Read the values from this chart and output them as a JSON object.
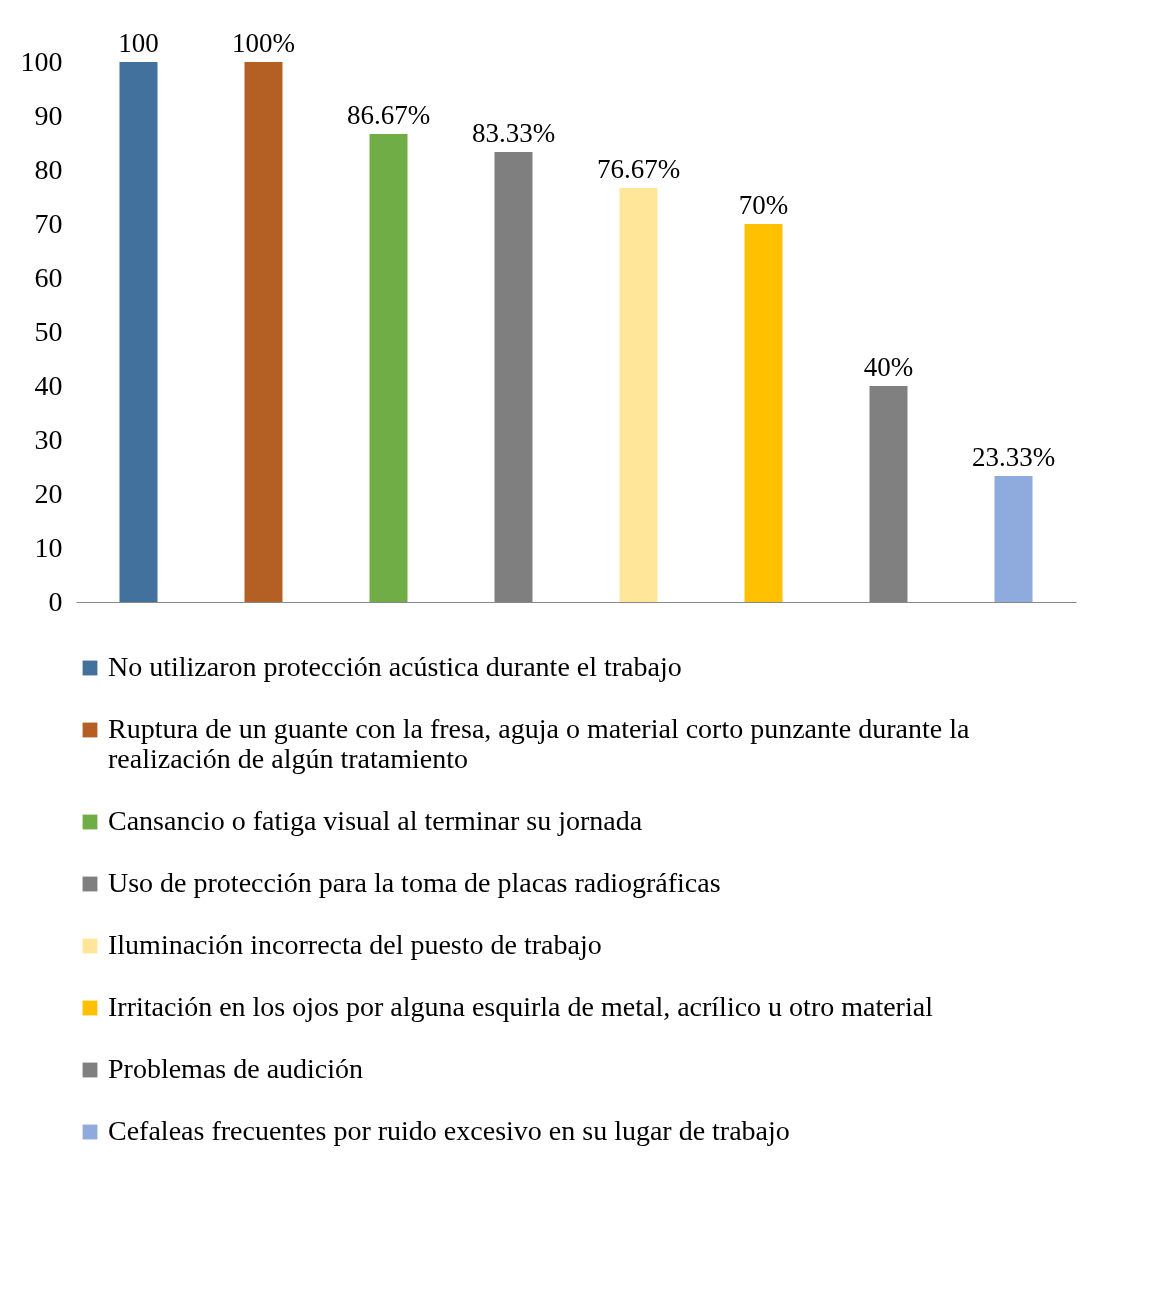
{
  "chart_data": {
    "type": "bar",
    "categories": [
      null,
      null,
      null,
      null,
      null,
      null,
      null,
      null
    ],
    "series": [
      {
        "name": "No utilizaron protección acústica durante el trabajo",
        "color": "#41719c",
        "values": [
          100,
          null,
          null,
          null,
          null,
          null,
          null,
          null
        ]
      },
      {
        "name": "Ruptura de un guante con la fresa, aguja o material corto punzante durante la realización de algún tratamiento",
        "color": "#b45f24",
        "values": [
          null,
          100,
          null,
          null,
          null,
          null,
          null,
          null
        ]
      },
      {
        "name": "Cansancio o fatiga visual al terminar su jornada",
        "color": "#70ad47",
        "values": [
          null,
          null,
          86.67,
          null,
          null,
          null,
          null,
          null
        ]
      },
      {
        "name": "Uso de protección para la toma de placas radiográficas",
        "color": "#7f7f7f",
        "values": [
          null,
          null,
          null,
          83.33,
          null,
          null,
          null,
          null
        ]
      },
      {
        "name": "Iluminación incorrecta del puesto de trabajo",
        "color": "#ffe699",
        "values": [
          null,
          null,
          null,
          null,
          76.67,
          null,
          null,
          null
        ]
      },
      {
        "name": "Irritación en los ojos por alguna esquirla de metal, acrílico u otro material",
        "color": "#ffc000",
        "values": [
          null,
          null,
          null,
          null,
          null,
          70,
          null,
          null
        ]
      },
      {
        "name": "Problemas de audición",
        "color": "#808080",
        "values": [
          null,
          null,
          null,
          null,
          null,
          null,
          40,
          null
        ]
      },
      {
        "name": "Cefaleas frecuentes por ruido excesivo en su lugar de trabajo",
        "color": "#8faadc",
        "values": [
          null,
          null,
          null,
          null,
          null,
          null,
          null,
          23.33
        ]
      }
    ],
    "value_labels": [
      "100",
      "100%",
      "86.67%",
      "83.33%",
      "76.67%",
      "70%",
      "40%",
      "23.33%"
    ],
    "ylim": [
      0,
      100
    ],
    "yticks": [
      0,
      10,
      20,
      30,
      40,
      50,
      60,
      70,
      80,
      90,
      100
    ],
    "grid": false,
    "legend": "bottom"
  }
}
